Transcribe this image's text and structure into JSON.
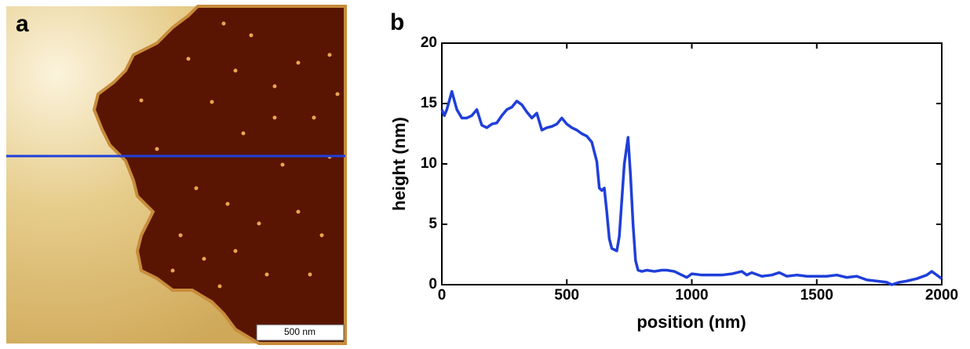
{
  "panel_labels": [
    "a",
    "b"
  ],
  "scale_bar": "500 nm",
  "chart_data": {
    "type": "line",
    "xlabel": "position (nm)",
    "ylabel": "height (nm)",
    "xlim": [
      0,
      2000
    ],
    "ylim": [
      0,
      20
    ],
    "xticks": [
      0,
      500,
      1000,
      1500,
      2000
    ],
    "yticks": [
      0,
      5,
      10,
      15,
      20
    ],
    "color": "#1f3fd9",
    "x": [
      0,
      10,
      20,
      40,
      60,
      80,
      100,
      120,
      140,
      160,
      180,
      200,
      220,
      240,
      260,
      280,
      300,
      320,
      340,
      360,
      380,
      400,
      420,
      440,
      460,
      480,
      500,
      520,
      540,
      560,
      580,
      600,
      620,
      630,
      640,
      650,
      660,
      670,
      680,
      700,
      710,
      720,
      730,
      745,
      755,
      765,
      775,
      785,
      800,
      820,
      850,
      880,
      900,
      930,
      960,
      980,
      1000,
      1040,
      1080,
      1120,
      1160,
      1200,
      1220,
      1240,
      1280,
      1320,
      1350,
      1380,
      1420,
      1460,
      1500,
      1540,
      1580,
      1620,
      1660,
      1700,
      1740,
      1780,
      1800,
      1830,
      1860,
      1900,
      1940,
      1960,
      1980,
      2000
    ],
    "values": [
      14.5,
      14,
      14.5,
      16,
      14.5,
      13.8,
      13.8,
      14,
      14.5,
      13.2,
      13,
      13.3,
      13.4,
      14,
      14.5,
      14.7,
      15.2,
      14.9,
      14.3,
      13.8,
      14.2,
      12.8,
      13,
      13.1,
      13.3,
      13.8,
      13.3,
      13,
      12.8,
      12.5,
      12.3,
      11.8,
      10.2,
      8,
      7.8,
      8,
      6,
      3.8,
      3,
      2.8,
      4,
      7,
      10,
      12.2,
      9,
      5,
      2,
      1.2,
      1.1,
      1.2,
      1.1,
      1.2,
      1.2,
      1.1,
      0.8,
      0.6,
      0.9,
      0.8,
      0.8,
      0.8,
      0.9,
      1.1,
      0.8,
      1,
      0.7,
      0.8,
      1,
      0.7,
      0.8,
      0.7,
      0.7,
      0.7,
      0.8,
      0.6,
      0.7,
      0.4,
      0.3,
      0.2,
      0,
      0.2,
      0.3,
      0.5,
      0.8,
      1.1,
      0.8,
      0.5
    ]
  }
}
